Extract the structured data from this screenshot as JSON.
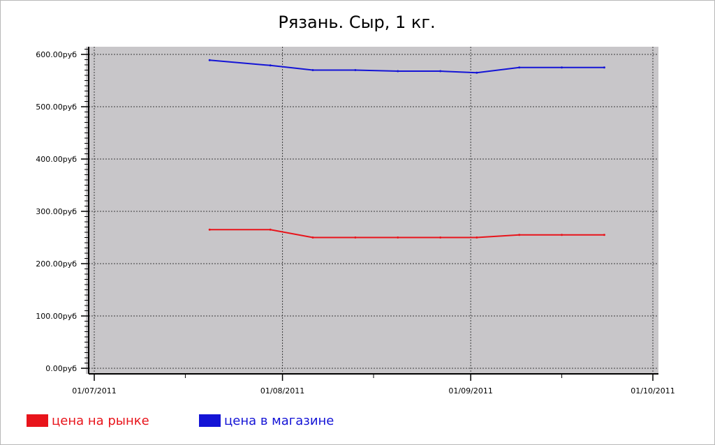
{
  "chart_data": {
    "type": "line",
    "title": "Рязань. Сыр, 1 кг.",
    "xlabel": "",
    "ylabel": "",
    "x_ticks": [
      "01/07/2011",
      "01/08/2011",
      "01/09/2011",
      "01/10/2011"
    ],
    "y_ticks": [
      "0.00руб",
      "100.00руб",
      "200.00руб",
      "300.00руб",
      "400.00руб",
      "500.00руб",
      "600.00руб"
    ],
    "xlim": [
      "2011-07-01",
      "2011-10-01"
    ],
    "ylim": [
      0,
      610
    ],
    "grid": true,
    "legend_position": "bottom-left",
    "x": [
      "2011-07-20",
      "2011-07-30",
      "2011-08-06",
      "2011-08-13",
      "2011-08-20",
      "2011-08-27",
      "2011-09-02",
      "2011-09-09",
      "2011-09-16",
      "2011-09-23"
    ],
    "series": [
      {
        "name": "цена на рынке",
        "color": "#e8141b",
        "values": [
          265,
          265,
          250,
          250,
          250,
          250,
          250,
          255,
          255,
          255
        ]
      },
      {
        "name": "цена в магазине",
        "color": "#1414d6",
        "values": [
          589,
          579,
          570,
          570,
          568,
          568,
          565,
          575,
          575,
          575
        ]
      }
    ]
  }
}
